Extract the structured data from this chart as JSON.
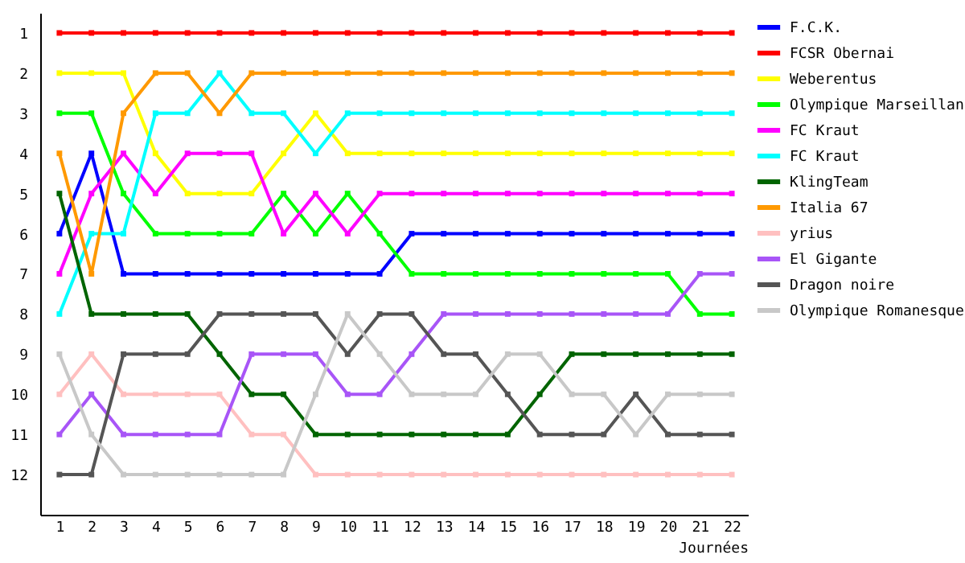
{
  "chart_data": {
    "type": "line",
    "xlabel": "Journées",
    "x": [
      1,
      2,
      3,
      4,
      5,
      6,
      7,
      8,
      9,
      10,
      11,
      12,
      13,
      14,
      15,
      16,
      17,
      18,
      19,
      20,
      21,
      22
    ],
    "xlim": [
      0.4,
      22.5
    ],
    "xticks": [
      1,
      2,
      3,
      4,
      5,
      6,
      7,
      8,
      9,
      10,
      11,
      12,
      13,
      14,
      15,
      16,
      17,
      18,
      19,
      20,
      21,
      22
    ],
    "ylim": [
      13,
      0.5
    ],
    "yticks": [
      1,
      2,
      3,
      4,
      5,
      6,
      7,
      8,
      9,
      10,
      11,
      12
    ],
    "grid": false,
    "legend": "right",
    "marker": "square",
    "line_style": "solid",
    "series": [
      {
        "name": "F.C.K.",
        "color": "#0000ff",
        "values": [
          6,
          4,
          7,
          7,
          7,
          7,
          7,
          7,
          7,
          7,
          7,
          6,
          6,
          6,
          6,
          6,
          6,
          6,
          6,
          6,
          6,
          6
        ]
      },
      {
        "name": "FCSR Obernai",
        "color": "#ff0000",
        "values": [
          1,
          1,
          1,
          1,
          1,
          1,
          1,
          1,
          1,
          1,
          1,
          1,
          1,
          1,
          1,
          1,
          1,
          1,
          1,
          1,
          1,
          1
        ]
      },
      {
        "name": "Weberentus",
        "color": "#ffff00",
        "values": [
          2,
          2,
          2,
          4,
          5,
          5,
          5,
          4,
          3,
          4,
          4,
          4,
          4,
          4,
          4,
          4,
          4,
          4,
          4,
          4,
          4,
          4
        ]
      },
      {
        "name": "Olympique Marseillan",
        "color": "#00ff00",
        "values": [
          3,
          3,
          5,
          6,
          6,
          6,
          6,
          5,
          6,
          5,
          6,
          7,
          7,
          7,
          7,
          7,
          7,
          7,
          7,
          7,
          8,
          8
        ]
      },
      {
        "name": "FC Kraut",
        "color": "#ff00ff",
        "values": [
          7,
          5,
          4,
          5,
          4,
          4,
          4,
          6,
          5,
          6,
          5,
          5,
          5,
          5,
          5,
          5,
          5,
          5,
          5,
          5,
          5,
          5
        ]
      },
      {
        "name": "FC Kraut",
        "color": "#00ffff",
        "values": [
          8,
          6,
          6,
          3,
          3,
          2,
          3,
          3,
          4,
          3,
          3,
          3,
          3,
          3,
          3,
          3,
          3,
          3,
          3,
          3,
          3,
          3
        ]
      },
      {
        "name": "KlingTeam",
        "color": "#006400",
        "values": [
          5,
          8,
          8,
          8,
          8,
          9,
          10,
          10,
          11,
          11,
          11,
          11,
          11,
          11,
          11,
          10,
          9,
          9,
          9,
          9,
          9,
          9
        ]
      },
      {
        "name": "Italia 67",
        "color": "#ff9900",
        "values": [
          4,
          7,
          3,
          2,
          2,
          3,
          2,
          2,
          2,
          2,
          2,
          2,
          2,
          2,
          2,
          2,
          2,
          2,
          2,
          2,
          2,
          2
        ]
      },
      {
        "name": "yrius",
        "color": "#ffc0c0",
        "values": [
          10,
          9,
          10,
          10,
          10,
          10,
          11,
          11,
          12,
          12,
          12,
          12,
          12,
          12,
          12,
          12,
          12,
          12,
          12,
          12,
          12,
          12
        ]
      },
      {
        "name": "El Gigante",
        "color": "#a855f7",
        "values": [
          11,
          10,
          11,
          11,
          11,
          11,
          9,
          9,
          9,
          10,
          10,
          9,
          8,
          8,
          8,
          8,
          8,
          8,
          8,
          8,
          7,
          7
        ]
      },
      {
        "name": "Dragon noire",
        "color": "#555555",
        "values": [
          12,
          12,
          9,
          9,
          9,
          8,
          8,
          8,
          8,
          9,
          8,
          8,
          9,
          9,
          10,
          11,
          11,
          11,
          10,
          11,
          11,
          11
        ]
      },
      {
        "name": "Olympique Romanesque",
        "color": "#c8c8c8",
        "values": [
          9,
          11,
          12,
          12,
          12,
          12,
          12,
          12,
          10,
          8,
          9,
          10,
          10,
          10,
          9,
          9,
          10,
          10,
          11,
          10,
          10,
          10
        ]
      }
    ]
  }
}
